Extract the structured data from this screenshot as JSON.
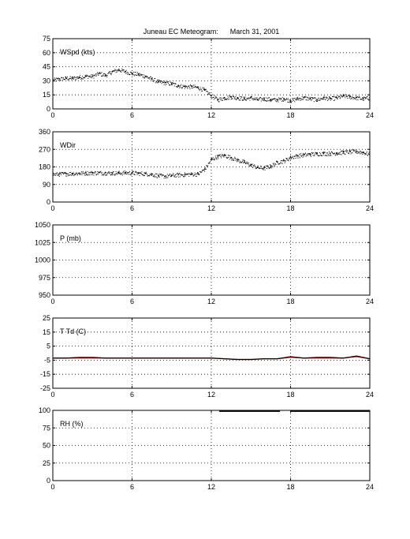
{
  "title": "Juneau EC Meteogram:      March 31, 2001",
  "chart_data": [
    {
      "type": "scatter",
      "label": "WSpd (kts)",
      "xlim": [
        0,
        24
      ],
      "ylim": [
        0,
        75
      ],
      "xticks": [
        0,
        6,
        12,
        18,
        24
      ],
      "yticks": [
        0,
        15,
        30,
        45,
        60,
        75
      ],
      "grid": true,
      "series": [
        {
          "color": "#000000",
          "x": [
            0,
            0.5,
            1,
            1.5,
            2,
            2.5,
            3,
            3.5,
            4,
            4.5,
            5,
            5.5,
            6,
            6.5,
            7,
            7.5,
            8,
            8.5,
            9,
            9.5,
            10,
            10.5,
            11,
            11.5,
            12,
            12.5,
            13,
            13.5,
            14,
            14.5,
            15,
            15.5,
            16,
            16.5,
            17,
            17.5,
            18,
            18.5,
            19,
            19.5,
            20,
            20.5,
            21,
            21.5,
            22,
            22.5,
            23,
            23.5,
            24
          ],
          "y": [
            31,
            32,
            33,
            33,
            34,
            35,
            35,
            38,
            36,
            40,
            42,
            40,
            38,
            37,
            35,
            32,
            29,
            28,
            27,
            25,
            24,
            24,
            23,
            20,
            14,
            10,
            12,
            13,
            12,
            11,
            12,
            10,
            11,
            10,
            10,
            11,
            9,
            11,
            12,
            11,
            10,
            12,
            11,
            12,
            14,
            13,
            12,
            11,
            12
          ]
        }
      ]
    },
    {
      "type": "scatter",
      "label": "WDir",
      "xlim": [
        0,
        24
      ],
      "ylim": [
        0,
        360
      ],
      "xticks": [
        0,
        6,
        12,
        18,
        24
      ],
      "yticks": [
        0,
        90,
        180,
        270,
        360
      ],
      "grid": true,
      "series": [
        {
          "color": "#000000",
          "x": [
            0,
            0.5,
            1,
            1.5,
            2,
            2.5,
            3,
            3.5,
            4,
            4.5,
            5,
            5.5,
            6,
            6.5,
            7,
            7.5,
            8,
            8.5,
            9,
            9.5,
            10,
            10.5,
            11,
            11.5,
            12,
            12.5,
            13,
            13.5,
            14,
            14.5,
            15,
            15.5,
            16,
            16.5,
            17,
            17.5,
            18,
            18.5,
            19,
            19.5,
            20,
            20.5,
            21,
            21.5,
            22,
            22.5,
            23,
            23.5,
            24
          ],
          "y": [
            143,
            144,
            146,
            147,
            148,
            150,
            150,
            151,
            150,
            149,
            150,
            151,
            150,
            148,
            146,
            143,
            135,
            133,
            137,
            140,
            142,
            144,
            145,
            170,
            220,
            235,
            240,
            228,
            215,
            205,
            190,
            178,
            175,
            185,
            205,
            212,
            230,
            238,
            242,
            246,
            248,
            250,
            250,
            252,
            256,
            258,
            260,
            255,
            245
          ]
        }
      ]
    },
    {
      "type": "line",
      "label": "P (mb)",
      "xlim": [
        0,
        24
      ],
      "ylim": [
        950,
        1050
      ],
      "xticks": [
        0,
        6,
        12,
        18,
        24
      ],
      "yticks": [
        950,
        975,
        1000,
        1025,
        1050
      ],
      "grid": true,
      "series": []
    },
    {
      "type": "line",
      "label": "T Td (C)",
      "xlim": [
        0,
        24
      ],
      "ylim": [
        -25,
        25
      ],
      "xticks": [
        0,
        6,
        12,
        18,
        24
      ],
      "yticks": [
        -25,
        -15,
        -5,
        5,
        15,
        25
      ],
      "grid": true,
      "series": [
        {
          "color": "#ff0000",
          "x": [
            0,
            1,
            2,
            3,
            4,
            5,
            6,
            7,
            8,
            9,
            10,
            11,
            12,
            13,
            14,
            15,
            16,
            17,
            18,
            19,
            20,
            21,
            22,
            23,
            24
          ],
          "y": [
            -3.5,
            -3.5,
            -3.5,
            -3.5,
            -3.5,
            -3.5,
            -3.5,
            -3.5,
            -3.5,
            -3.5,
            -3.5,
            -3.5,
            -3.5,
            -4,
            -4.5,
            -4.5,
            -4,
            -4,
            -3,
            -3.5,
            -3.5,
            -3.5,
            -3.5,
            -2.5,
            -4
          ]
        },
        {
          "color": "#000000",
          "x": [
            0,
            1,
            2,
            3,
            4,
            5,
            6,
            7,
            8,
            9,
            10,
            11,
            12,
            13,
            14,
            15,
            16,
            17,
            18,
            19,
            20,
            21,
            22,
            23,
            24
          ],
          "y": [
            -3.5,
            -3.5,
            -3,
            -3,
            -3.5,
            -3.5,
            -3.5,
            -3.5,
            -3.5,
            -3.5,
            -3.5,
            -3.5,
            -3.5,
            -4,
            -4.5,
            -4.5,
            -4,
            -4,
            -2.5,
            -3.5,
            -3,
            -3,
            -3.5,
            -2,
            -4
          ]
        }
      ]
    },
    {
      "type": "line",
      "label": "RH (%)",
      "xlim": [
        0,
        24
      ],
      "ylim": [
        0,
        100
      ],
      "xticks": [
        0,
        6,
        12,
        18,
        24
      ],
      "yticks": [
        0,
        25,
        50,
        75,
        100
      ],
      "grid": true,
      "series": [
        {
          "color": "#000000",
          "x": [
            12.6,
            17.2
          ],
          "y": [
            99,
            99
          ]
        },
        {
          "color": "#000000",
          "x": [
            18,
            24
          ],
          "y": [
            99,
            99
          ]
        }
      ]
    }
  ]
}
